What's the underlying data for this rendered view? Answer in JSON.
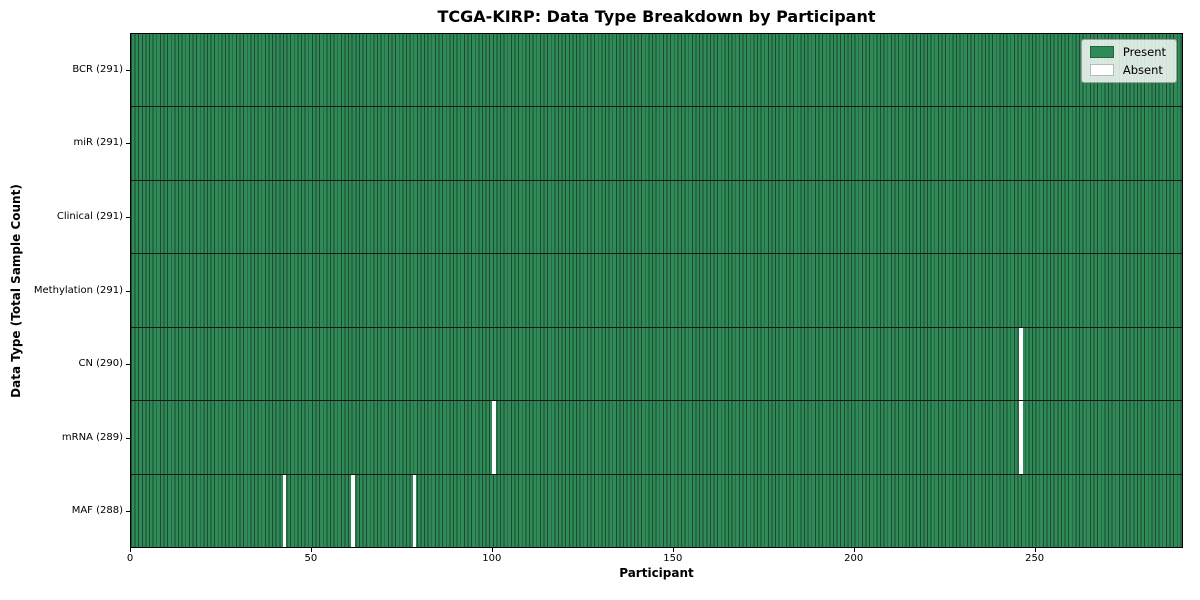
{
  "figure": {
    "title": "TCGA-KIRP: Data Type Breakdown by Participant",
    "xlabel": "Participant",
    "ylabel": "Data Type (Total Sample Count)"
  },
  "legend": {
    "items": [
      {
        "label": "Present",
        "color": "#2e8b57"
      },
      {
        "label": "Absent",
        "color": "#ffffff"
      }
    ]
  },
  "chart_data": {
    "type": "heatmap",
    "title": "TCGA-KIRP: Data Type Breakdown by Participant",
    "xlabel": "Participant",
    "ylabel": "Data Type (Total Sample Count)",
    "n_participants": 291,
    "xlim": [
      0,
      291
    ],
    "x_ticks": [
      0,
      50,
      100,
      150,
      200,
      250
    ],
    "grid": false,
    "legend_position": "upper right",
    "rows": [
      {
        "label": "BCR (291)",
        "data_type": "BCR",
        "total_samples": 291,
        "absent_participants": []
      },
      {
        "label": "miR (291)",
        "data_type": "miR",
        "total_samples": 291,
        "absent_participants": []
      },
      {
        "label": "Clinical (291)",
        "data_type": "Clinical",
        "total_samples": 291,
        "absent_participants": []
      },
      {
        "label": "Methylation (291)",
        "data_type": "Methylation",
        "total_samples": 291,
        "absent_participants": []
      },
      {
        "label": "CN (290)",
        "data_type": "CN",
        "total_samples": 290,
        "absent_participants": [
          246
        ]
      },
      {
        "label": "mRNA (289)",
        "data_type": "mRNA",
        "total_samples": 289,
        "absent_participants": [
          100,
          246
        ]
      },
      {
        "label": "MAF (288)",
        "data_type": "MAF",
        "total_samples": 288,
        "absent_participants": [
          42,
          61,
          78
        ]
      }
    ],
    "colors": {
      "present": "#2e8b57",
      "absent": "#ffffff",
      "bar_edge": "#1f4a31",
      "row_separator": "#161616"
    }
  }
}
